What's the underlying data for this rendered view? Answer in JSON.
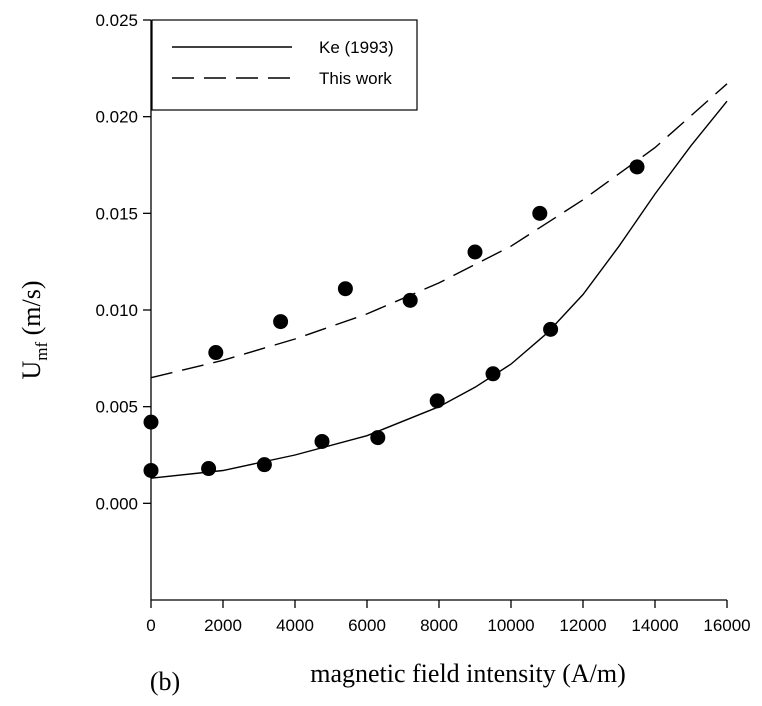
{
  "chart_data": {
    "type": "scatter",
    "panel_label": "(b)",
    "xlabel": "magnetic field intensity (A/m)",
    "ylabel": {
      "main": "U",
      "subscript": "mf",
      "rest": " (m/s)"
    },
    "xlim": [
      0,
      16000
    ],
    "ylim": [
      -0.005,
      0.025
    ],
    "x_ticks": [
      0,
      2000,
      4000,
      6000,
      8000,
      10000,
      12000,
      14000,
      16000
    ],
    "x_tick_labels": [
      "0",
      "2000",
      "4000",
      "6000",
      "8000",
      "10000",
      "12000",
      "14000",
      "16000"
    ],
    "y_ticks": [
      0.0,
      0.005,
      0.01,
      0.015,
      0.02,
      0.025
    ],
    "y_tick_labels": [
      "0.000",
      "0.005",
      "0.010",
      "0.015",
      "0.020",
      "0.025"
    ],
    "grid": false,
    "legend": {
      "position": "top-left",
      "entries": [
        {
          "label": "Ke (1993)",
          "style": "solid"
        },
        {
          "label": "This work",
          "style": "dashed"
        }
      ]
    },
    "series": [
      {
        "name": "Ke (1993)",
        "kind": "line",
        "style": "solid",
        "x": [
          0,
          2000,
          4000,
          6000,
          8000,
          9000,
          10000,
          11000,
          12000,
          13000,
          14000,
          15000,
          16000
        ],
        "y": [
          0.0013,
          0.0017,
          0.0025,
          0.0035,
          0.005,
          0.006,
          0.0072,
          0.0088,
          0.0108,
          0.0133,
          0.016,
          0.0185,
          0.0208
        ]
      },
      {
        "name": "This work",
        "kind": "line",
        "style": "dashed",
        "x": [
          0,
          2000,
          4000,
          6000,
          8000,
          10000,
          12000,
          14000,
          16000
        ],
        "y": [
          0.0065,
          0.0074,
          0.0085,
          0.0098,
          0.0114,
          0.0133,
          0.0157,
          0.0184,
          0.0217
        ]
      },
      {
        "kind": "points",
        "x": [
          0,
          1600,
          3150,
          4750,
          6300,
          7950,
          9500,
          11100
        ],
        "y": [
          0.0017,
          0.0018,
          0.002,
          0.0032,
          0.0034,
          0.0053,
          0.0067,
          0.009
        ]
      },
      {
        "kind": "points",
        "x": [
          0,
          1800,
          3600,
          5400,
          7200,
          9000,
          10800,
          13500
        ],
        "y": [
          0.0042,
          0.0078,
          0.0094,
          0.0111,
          0.0105,
          0.013,
          0.015,
          0.0174
        ]
      }
    ]
  }
}
